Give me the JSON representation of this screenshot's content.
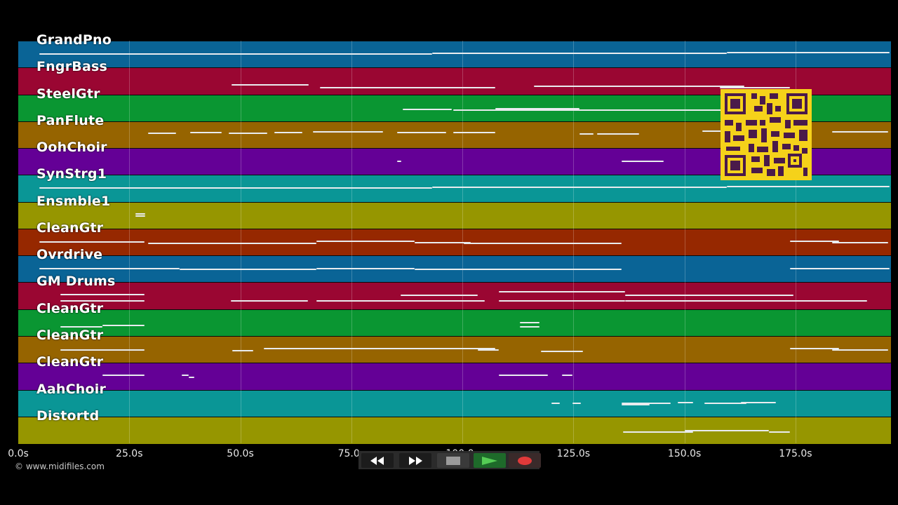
{
  "tracks": [
    {
      "name": "GrandPno",
      "color": "#0a6496"
    },
    {
      "name": "FngrBass",
      "color": "#9a0632"
    },
    {
      "name": "SteelGtr",
      "color": "#0a9632"
    },
    {
      "name": "PanFlute",
      "color": "#966400"
    },
    {
      "name": "OohChoir",
      "color": "#640096"
    },
    {
      "name": "SynStrg1",
      "color": "#0a9696"
    },
    {
      "name": "Ensmble1",
      "color": "#969600"
    },
    {
      "name": "CleanGtr",
      "color": "#962800"
    },
    {
      "name": "Ovrdrive",
      "color": "#0a6496"
    },
    {
      "name": "GM Drums",
      "color": "#9a0632"
    },
    {
      "name": "CleanGtr",
      "color": "#0a9632"
    },
    {
      "name": "CleanGtr",
      "color": "#966400"
    },
    {
      "name": "CleanGtr",
      "color": "#640096"
    },
    {
      "name": "AahChoir",
      "color": "#0a9696"
    },
    {
      "name": "Distortd",
      "color": "#969600"
    }
  ],
  "timeline": {
    "ticks": [
      "0.0s",
      "25.0s",
      "50.0s",
      "75.0s",
      "100.0s",
      "125.0s",
      "150.0s",
      "175.0s"
    ],
    "tick_seconds": [
      0,
      25,
      50,
      75,
      100,
      125,
      150,
      175
    ],
    "duration_seconds": 196.5
  },
  "copyright": "© www.midifiles.com",
  "transport": {
    "rewind": "rewind-icon",
    "fast_forward": "fast-forward-icon",
    "stop": "stop-icon",
    "play": "play-icon",
    "record": "record-icon"
  },
  "qr_code": "qr-code"
}
